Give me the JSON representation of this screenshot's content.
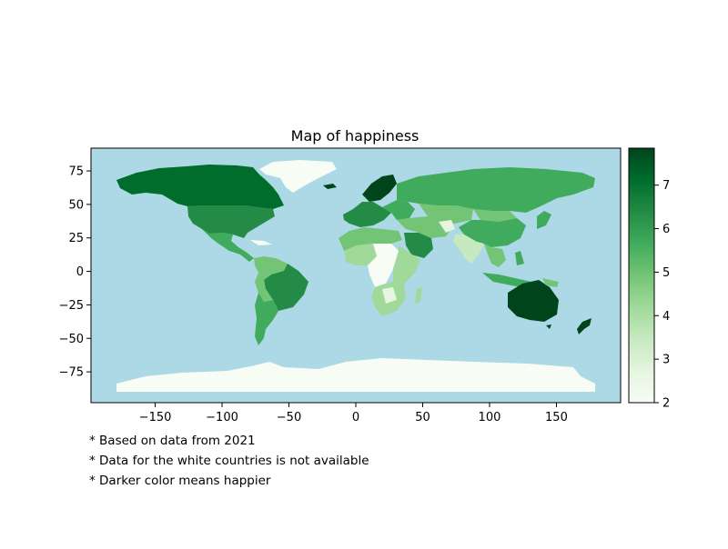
{
  "title": "Map of happiness",
  "ocean_color": "#add8e6",
  "no_data_color": "#f7fcf5",
  "colormap": "Greens",
  "map_data": {
    "type": "choropleth",
    "metric": "happiness score",
    "xlim": [
      -198,
      198
    ],
    "ylim": [
      -98,
      92
    ],
    "x_ticks": [
      -150,
      -100,
      -50,
      0,
      50,
      100,
      150
    ],
    "x_tick_labels": [
      "−150",
      "−100",
      "−50",
      "0",
      "50",
      "100",
      "150"
    ],
    "y_ticks": [
      75,
      50,
      25,
      0,
      -25,
      -50,
      -75
    ],
    "y_tick_labels": [
      "75",
      "50",
      "25",
      "0",
      "−25",
      "−50",
      "−75"
    ],
    "colorbar": {
      "range": [
        2,
        7.85
      ],
      "ticks": [
        2,
        3,
        4,
        5,
        6,
        7
      ],
      "tick_labels": [
        "2",
        "3",
        "4",
        "5",
        "6",
        "7"
      ]
    }
  },
  "footnotes": [
    "* Based on data from 2021",
    "* Data for the white countries is not available",
    "* Darker color means happier"
  ]
}
